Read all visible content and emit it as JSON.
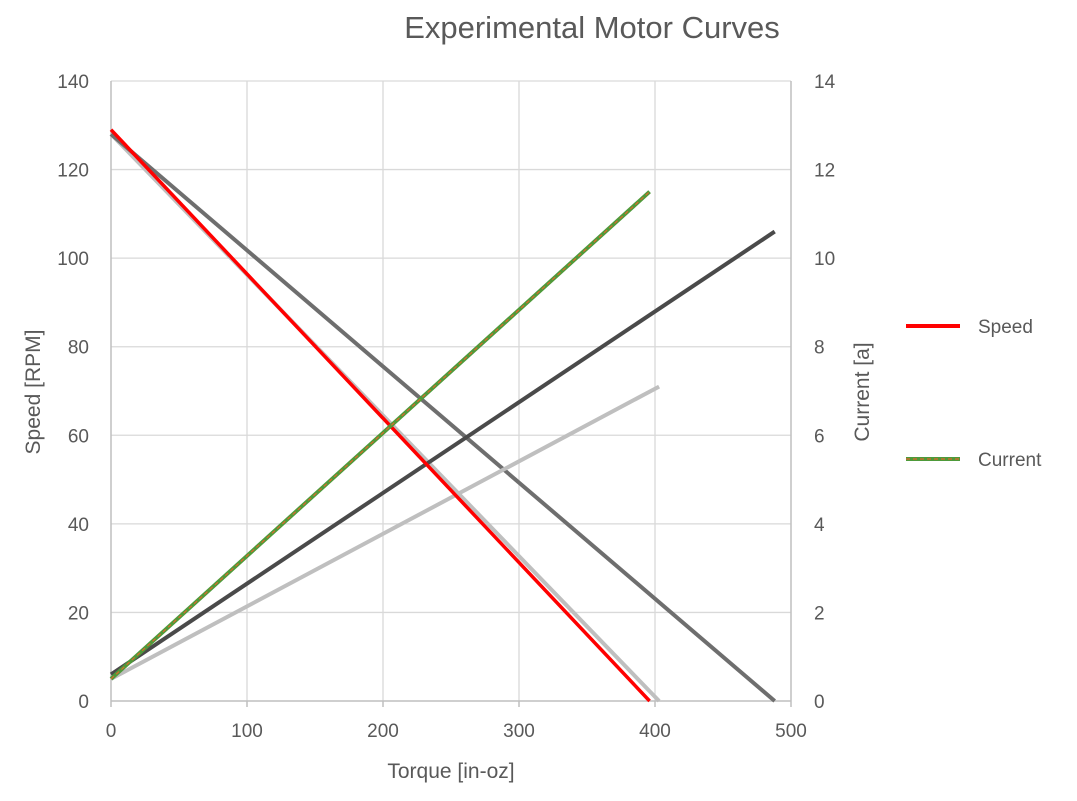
{
  "chart_data": {
    "type": "line",
    "title": "Experimental Motor Curves",
    "xlabel": "Torque [in-oz]",
    "ylabel": "Speed [RPM]",
    "y2label": "Current [a]",
    "xlim": [
      0,
      500
    ],
    "ylim": [
      0,
      140
    ],
    "y2lim": [
      0,
      14
    ],
    "x_ticks": [
      0,
      100,
      200,
      300,
      400,
      500
    ],
    "y_ticks": [
      0,
      20,
      40,
      60,
      80,
      100,
      120,
      140
    ],
    "y2_ticks": [
      0,
      2,
      4,
      6,
      8,
      10,
      12,
      14
    ],
    "grid": true,
    "legend_position": "right",
    "colors": {
      "speed": "#ff0000",
      "current": "#4e9a3a",
      "current_core": "#e0672a",
      "dark_gray": "#6e6e6e",
      "charcoal": "#4a4a4a",
      "light_gray": "#bfbfbf",
      "grid": "#d9d9d9",
      "axis": "#bfbfbf"
    },
    "series": [
      {
        "name": "Speed",
        "axis": "left",
        "color": "speed",
        "x": [
          0,
          396
        ],
        "y": [
          129,
          0
        ],
        "legend": true
      },
      {
        "name": "Current",
        "axis": "right",
        "color": "current",
        "x": [
          0,
          396
        ],
        "y": [
          0.5,
          11.5
        ],
        "legend": true
      },
      {
        "axis": "left",
        "color": "light_gray",
        "x": [
          0,
          403
        ],
        "y": [
          128,
          0
        ]
      },
      {
        "axis": "left",
        "color": "dark_gray",
        "x": [
          0,
          488
        ],
        "y": [
          128,
          0
        ]
      },
      {
        "axis": "right",
        "color": "charcoal",
        "x": [
          0,
          488
        ],
        "y": [
          0.6,
          10.6
        ]
      },
      {
        "axis": "right",
        "color": "light_gray",
        "x": [
          0,
          403
        ],
        "y": [
          0.5,
          7.1
        ]
      }
    ]
  }
}
